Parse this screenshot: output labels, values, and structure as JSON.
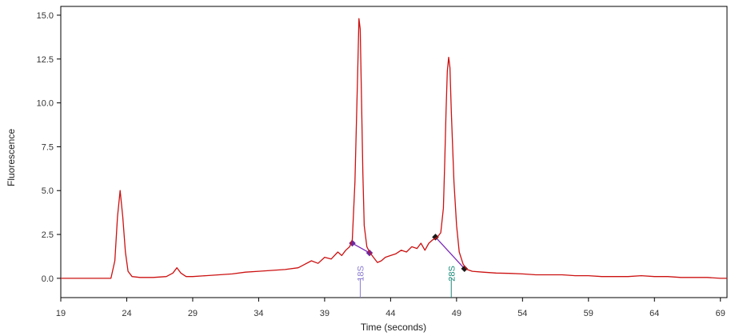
{
  "chart_data": {
    "type": "line",
    "title": "",
    "xlabel": "Time (seconds)",
    "ylabel": "Fluorescence",
    "xlim": [
      19,
      69.5
    ],
    "ylim": [
      -1.1,
      15.5
    ],
    "x_ticks": [
      19,
      24,
      29,
      34,
      39,
      44,
      49,
      54,
      59,
      64,
      69
    ],
    "y_ticks": [
      0.0,
      2.5,
      5.0,
      7.5,
      10.0,
      12.5,
      15.0
    ],
    "x_tick_labels": [
      "19",
      "24",
      "29",
      "34",
      "39",
      "44",
      "49",
      "54",
      "59",
      "64",
      "69"
    ],
    "y_tick_labels": [
      "0.0",
      "2.5",
      "5.0",
      "7.5",
      "10.0",
      "12.5",
      "15.0"
    ],
    "grid": false,
    "series": [
      {
        "color": "#cc1111",
        "x": [
          19,
          20,
          21,
          22,
          22.8,
          23.1,
          23.3,
          23.5,
          23.7,
          23.9,
          24.1,
          24.4,
          25,
          26,
          27,
          27.5,
          27.8,
          28.1,
          28.5,
          29,
          30,
          31,
          32,
          33,
          34,
          35,
          36,
          37,
          37.5,
          38,
          38.5,
          39,
          39.5,
          40,
          40.3,
          40.6,
          40.9,
          41.1,
          41.3,
          41.5,
          41.6,
          41.7,
          41.8,
          41.9,
          42.0,
          42.2,
          42.4,
          42.7,
          43,
          43.3,
          43.6,
          44,
          44.4,
          44.8,
          45.2,
          45.6,
          46,
          46.3,
          46.6,
          46.9,
          47.2,
          47.5,
          47.8,
          48.0,
          48.1,
          48.2,
          48.3,
          48.4,
          48.5,
          48.6,
          48.8,
          49.0,
          49.2,
          49.5,
          49.8,
          50.2,
          51,
          52,
          53,
          54,
          55,
          56,
          57,
          58,
          59,
          60,
          61,
          62,
          63,
          64,
          65,
          66,
          67,
          68,
          69,
          69.5
        ],
        "y": [
          0.0,
          0.0,
          0.0,
          0.0,
          0.0,
          1.0,
          3.5,
          5.0,
          3.5,
          1.5,
          0.4,
          0.1,
          0.05,
          0.05,
          0.1,
          0.3,
          0.6,
          0.3,
          0.1,
          0.1,
          0.15,
          0.2,
          0.25,
          0.35,
          0.4,
          0.45,
          0.5,
          0.6,
          0.8,
          1.0,
          0.85,
          1.2,
          1.1,
          1.5,
          1.3,
          1.6,
          1.8,
          2.2,
          5.5,
          11.5,
          14.8,
          14.2,
          10.0,
          6.0,
          3.0,
          1.8,
          1.5,
          1.2,
          0.9,
          1.0,
          1.2,
          1.3,
          1.4,
          1.6,
          1.5,
          1.8,
          1.7,
          2.0,
          1.6,
          2.0,
          2.2,
          2.3,
          2.6,
          4.0,
          6.5,
          9.5,
          11.8,
          12.6,
          12.0,
          9.5,
          5.5,
          3.0,
          1.5,
          0.8,
          0.5,
          0.4,
          0.35,
          0.3,
          0.28,
          0.25,
          0.2,
          0.2,
          0.2,
          0.15,
          0.15,
          0.1,
          0.1,
          0.1,
          0.15,
          0.1,
          0.1,
          0.05,
          0.05,
          0.05,
          0.0,
          0.0
        ]
      }
    ],
    "peak_baselines": [
      {
        "color": "#7b2ab8",
        "marker_color": "#6a2aa0",
        "x1": 41.1,
        "y1": 2.0,
        "x2": 42.4,
        "y2": 1.45
      },
      {
        "color": "#7b2ab8",
        "marker_color": "#1a1a1a",
        "x1": 47.4,
        "y1": 2.35,
        "x2": 49.6,
        "y2": 0.55
      }
    ],
    "peak_labels": [
      {
        "text": "18S",
        "x": 41.7,
        "color": "#8a7ad0"
      },
      {
        "text": "28S",
        "x": 48.6,
        "color": "#1a8a7a"
      }
    ]
  }
}
